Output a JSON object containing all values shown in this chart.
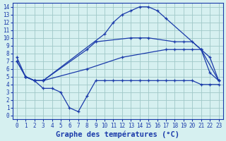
{
  "title": "Graphe des températures (°C)",
  "bg_color": "#d6f0f0",
  "grid_color": "#a0c8c8",
  "line_color": "#1a3aaa",
  "xlim": [
    -0.5,
    23.5
  ],
  "ylim": [
    -0.5,
    14.5
  ],
  "xticks": [
    0,
    1,
    2,
    3,
    4,
    5,
    6,
    7,
    8,
    9,
    10,
    11,
    12,
    13,
    14,
    15,
    16,
    17,
    18,
    19,
    20,
    21,
    22,
    23
  ],
  "yticks": [
    0,
    1,
    2,
    3,
    4,
    5,
    6,
    7,
    8,
    9,
    10,
    11,
    12,
    13,
    14
  ],
  "series": [
    {
      "x": [
        0,
        1,
        2,
        3,
        10,
        11,
        12,
        13,
        14,
        15,
        16,
        17,
        21,
        23
      ],
      "y": [
        7.5,
        5.0,
        4.5,
        4.5,
        10.5,
        12.0,
        13.0,
        13.5,
        14.0,
        14.0,
        13.5,
        12.5,
        8.5,
        4.5
      ],
      "marker": "+"
    },
    {
      "x": [
        0,
        1,
        2,
        3,
        8,
        9,
        13,
        14,
        15,
        18,
        19,
        20,
        21,
        22,
        23
      ],
      "y": [
        7.0,
        5.0,
        4.5,
        4.5,
        8.5,
        9.5,
        10.0,
        10.0,
        10.0,
        9.5,
        9.5,
        9.5,
        8.5,
        5.5,
        4.5
      ],
      "marker": "+"
    },
    {
      "x": [
        0,
        1,
        2,
        3,
        8,
        12,
        17,
        18,
        19,
        20,
        21,
        22,
        23
      ],
      "y": [
        7.0,
        5.0,
        4.5,
        4.5,
        6.0,
        7.5,
        8.5,
        8.5,
        8.5,
        8.5,
        8.5,
        7.5,
        4.5
      ],
      "marker": "+"
    },
    {
      "x": [
        1,
        2,
        3,
        4,
        5,
        6,
        7,
        8,
        9,
        10,
        11,
        12,
        13,
        14,
        15,
        16,
        17,
        18,
        19,
        20,
        21,
        22,
        23
      ],
      "y": [
        5.0,
        4.5,
        3.5,
        3.5,
        3.0,
        1.0,
        0.5,
        2.5,
        4.5,
        4.5,
        4.5,
        4.5,
        4.5,
        4.5,
        4.5,
        4.5,
        4.5,
        4.5,
        4.5,
        4.5,
        4.0,
        4.0,
        4.0
      ],
      "marker": "+"
    }
  ],
  "title_fontsize": 7.5,
  "tick_fontsize": 5.5
}
